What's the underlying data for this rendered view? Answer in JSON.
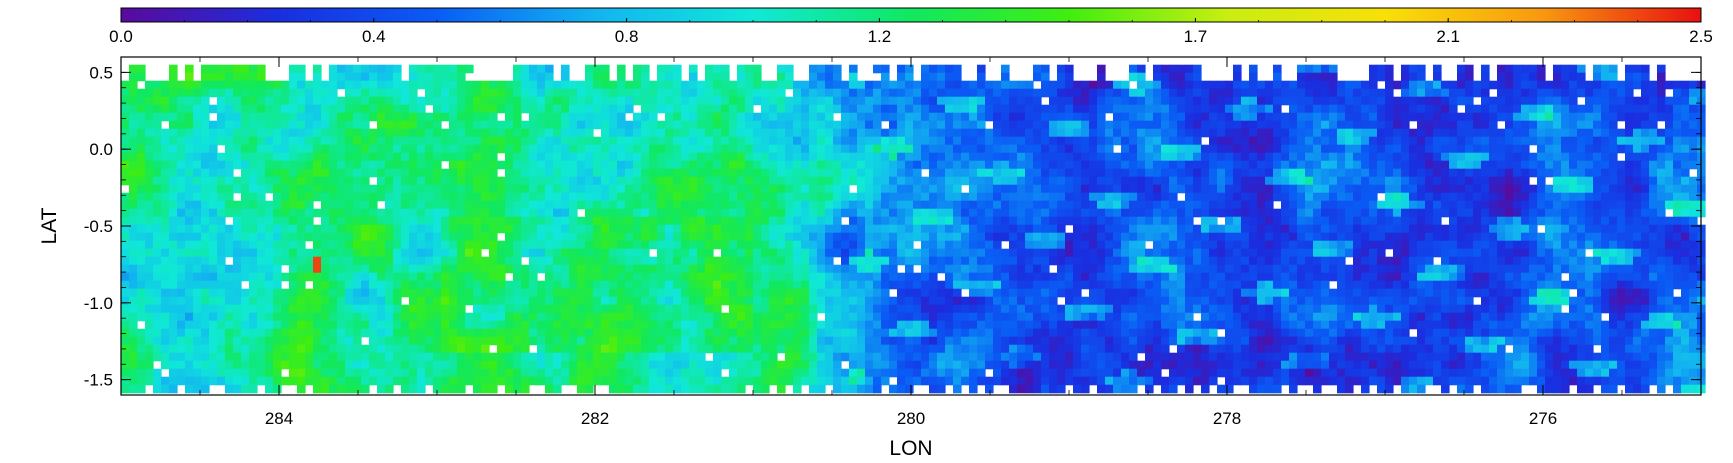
{
  "chart_data": {
    "type": "heatmap",
    "title": "",
    "xlabel": "LON",
    "ylabel": "LAT",
    "xlim": [
      285.0,
      275.0
    ],
    "ylim": [
      -1.6,
      0.6
    ],
    "x_ticks": [
      "284",
      "282",
      "280",
      "278",
      "276"
    ],
    "x_tick_values": [
      284,
      282,
      280,
      278,
      276
    ],
    "y_ticks": [
      "0.5",
      "0.0",
      "-0.5",
      "-1.0",
      "-1.5"
    ],
    "y_tick_values": [
      0.5,
      0.0,
      -0.5,
      -1.0,
      -1.5
    ],
    "colorbar": {
      "range": [
        0.0,
        2.5
      ],
      "tick_labels": [
        "0.0",
        "0.4",
        "0.8",
        "1.2",
        "1.7",
        "2.1",
        "2.5"
      ],
      "tick_values": [
        0.0,
        0.4,
        0.8,
        1.2,
        1.7,
        2.1,
        2.5
      ],
      "colormap": [
        "#5a0a9c",
        "#1a2ee0",
        "#0a5cf5",
        "#12b4f0",
        "#10e8d8",
        "#10e860",
        "#40ee10",
        "#c8ee10",
        "#f8e008",
        "#f89810",
        "#e81010"
      ]
    },
    "data_extent": {
      "lon": [
        285.0,
        275.0
      ],
      "lat": [
        -1.55,
        0.55
      ]
    },
    "approximate_field": {
      "description_regions": [
        {
          "lon": [
            285.0,
            280.5
          ],
          "lat": [
            -1.55,
            0.55
          ],
          "typical_value": 1.15
        },
        {
          "lon": [
            283.0,
            281.0
          ],
          "lat": [
            -1.3,
            -0.4
          ],
          "typical_value": 1.5
        },
        {
          "lon": [
            280.5,
            275.0
          ],
          "lat": [
            -1.55,
            0.55
          ],
          "typical_value": 0.45
        }
      ],
      "peak": {
        "lon": 283.8,
        "lat": -0.72,
        "value": 2.4
      }
    }
  }
}
